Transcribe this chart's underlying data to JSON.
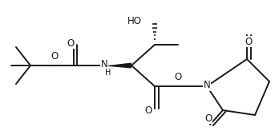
{
  "bg_color": "#ffffff",
  "line_color": "#1a1a1a",
  "line_width": 1.4,
  "font_size": 8.5,
  "figsize": [
    3.48,
    1.64
  ],
  "dpi": 100,
  "xlim": [
    0,
    348
  ],
  "ylim": [
    0,
    164
  ]
}
